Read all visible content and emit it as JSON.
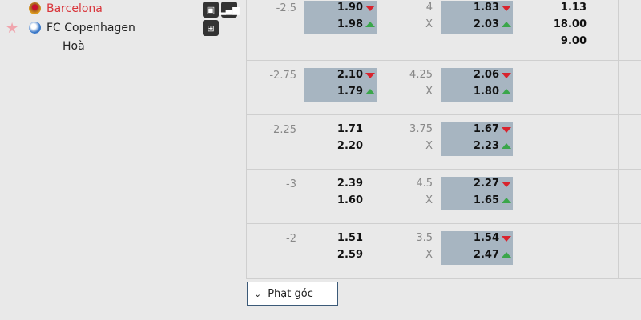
{
  "match": {
    "home": "Barcelona",
    "away": "FC Copenhagen",
    "draw": "Hoà",
    "home_color": "#d9343a",
    "icons": [
      "tv-icon",
      "stats-icon",
      "lineup-icon",
      "star-icon"
    ]
  },
  "rows": [
    {
      "hdp": "-2.5",
      "h1": "1.90",
      "h2": "1.98",
      "hdp_hl": true,
      "ou": "4",
      "ou_x": "X",
      "o1": "1.83",
      "o2": "2.03",
      "ou_hl": true,
      "x12": [
        "1.13",
        "18.00",
        "9.00"
      ]
    },
    {
      "hdp": "-2.75",
      "h1": "2.10",
      "h2": "1.79",
      "hdp_hl": true,
      "ou": "4.25",
      "ou_x": "X",
      "o1": "2.06",
      "o2": "1.80",
      "ou_hl": true
    },
    {
      "hdp": "-2.25",
      "h1": "1.71",
      "h2": "2.20",
      "hdp_hl": false,
      "ou": "3.75",
      "ou_x": "X",
      "o1": "1.67",
      "o2": "2.23",
      "ou_hl": true
    },
    {
      "hdp": "-3",
      "h1": "2.39",
      "h2": "1.60",
      "hdp_hl": false,
      "ou": "4.5",
      "ou_x": "X",
      "o1": "2.27",
      "o2": "1.65",
      "ou_hl": true
    },
    {
      "hdp": "-2",
      "h1": "1.51",
      "h2": "2.59",
      "hdp_hl": false,
      "ou": "3.5",
      "ou_x": "X",
      "o1": "1.54",
      "o2": "2.47",
      "ou_hl": true
    }
  ],
  "corner_button": {
    "label": "Phạt góc"
  },
  "colors": {
    "highlight": "#a7b5c1",
    "down": "#d9232d",
    "up": "#3aa64a",
    "background": "#e9e9e9"
  }
}
